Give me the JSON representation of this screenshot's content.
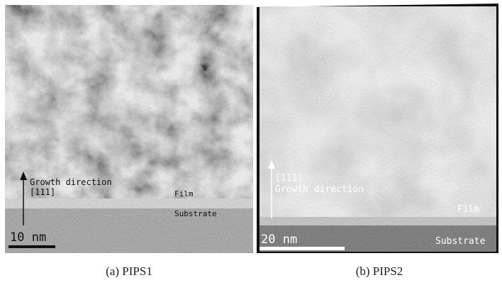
{
  "panels": [
    {
      "growth_label": "Growth direction",
      "direction": "[111]",
      "film_label": "Film",
      "substrate_label": "Substrate",
      "scale_bar": "10 nm",
      "caption": "(a) PIPS1"
    },
    {
      "direction": "[111]",
      "growth_label": "Growth direction",
      "film_label": "Film",
      "substrate_label": "Substrate",
      "scale_bar": "20 nm",
      "caption": "(b) PIPS2"
    }
  ]
}
